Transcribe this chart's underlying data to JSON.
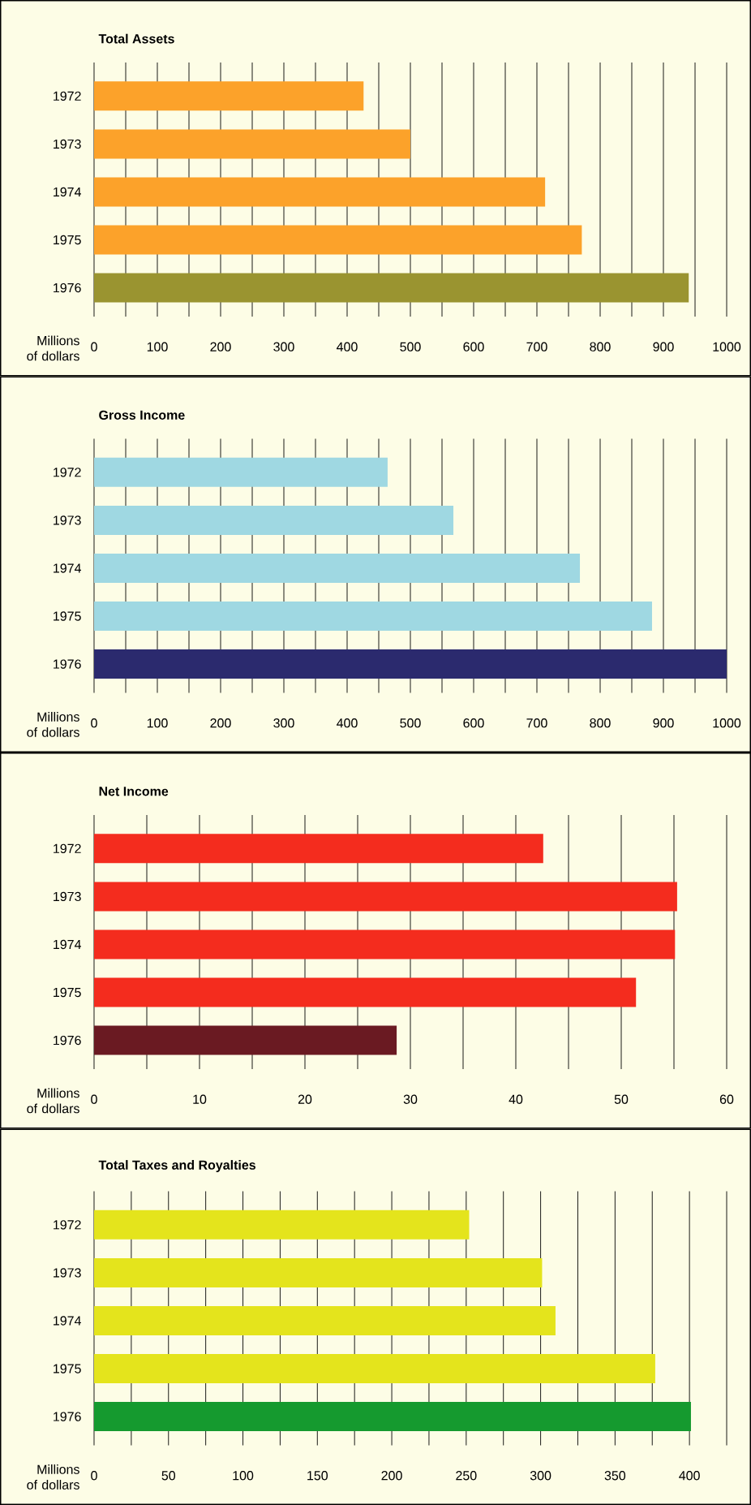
{
  "chart_data": [
    {
      "type": "bar",
      "orientation": "horizontal",
      "title": "Total Assets",
      "xlabel": "Millions of dollars",
      "categories": [
        "1972",
        "1973",
        "1974",
        "1975",
        "1976"
      ],
      "values": [
        426,
        500,
        713,
        771,
        940
      ],
      "colors": [
        "#fca22a",
        "#fca22a",
        "#fca22a",
        "#fca22a",
        "#9a9430"
      ],
      "xlim": [
        0,
        1000
      ],
      "xticks": [
        0,
        {
          "value": 50,
          "label": null
        },
        100,
        {
          "value": 150,
          "label": null
        },
        200,
        {
          "value": 250,
          "label": null
        },
        300,
        {
          "value": 350,
          "label": null
        },
        400,
        {
          "value": 450,
          "label": null
        },
        500,
        {
          "value": 550,
          "label": null
        },
        600,
        {
          "value": 650,
          "label": null
        },
        700,
        {
          "value": 750,
          "label": null
        },
        800,
        {
          "value": 850,
          "label": null
        },
        900,
        {
          "value": 950,
          "label": null
        },
        1000
      ],
      "grid": "x"
    },
    {
      "type": "bar",
      "orientation": "horizontal",
      "title": "Gross Income",
      "xlabel": "Millions of dollars",
      "categories": [
        "1972",
        "1973",
        "1974",
        "1975",
        "1976"
      ],
      "values": [
        464,
        568,
        768,
        882,
        1000
      ],
      "colors": [
        "#9fd8e2",
        "#9fd8e2",
        "#9fd8e2",
        "#9fd8e2",
        "#2b2a6e"
      ],
      "xlim": [
        0,
        1000
      ],
      "xticks": [
        0,
        {
          "value": 50,
          "label": null
        },
        100,
        {
          "value": 150,
          "label": null
        },
        200,
        {
          "value": 250,
          "label": null
        },
        300,
        {
          "value": 350,
          "label": null
        },
        400,
        {
          "value": 450,
          "label": null
        },
        500,
        {
          "value": 550,
          "label": null
        },
        600,
        {
          "value": 650,
          "label": null
        },
        700,
        {
          "value": 750,
          "label": null
        },
        800,
        {
          "value": 850,
          "label": null
        },
        900,
        {
          "value": 950,
          "label": null
        },
        1000
      ],
      "grid": "x"
    },
    {
      "type": "bar",
      "orientation": "horizontal",
      "title": "Net Income",
      "xlabel": "Millions of dollars",
      "categories": [
        "1972",
        "1973",
        "1974",
        "1975",
        "1976"
      ],
      "values": [
        42.6,
        55.3,
        55.1,
        51.4,
        28.7
      ],
      "colors": [
        "#f42c1e",
        "#f42c1e",
        "#f42c1e",
        "#f42c1e",
        "#6a1a22"
      ],
      "xlim": [
        0,
        60
      ],
      "xticks": [
        0,
        {
          "value": 5,
          "label": null
        },
        10,
        {
          "value": 15,
          "label": null
        },
        20,
        {
          "value": 25,
          "label": null
        },
        30,
        {
          "value": 35,
          "label": null
        },
        40,
        {
          "value": 45,
          "label": null
        },
        50,
        {
          "value": 55,
          "label": null
        },
        60
      ],
      "grid": "x"
    },
    {
      "type": "bar",
      "orientation": "horizontal",
      "title": "Total Taxes and Royalties",
      "xlabel": "Millions of dollars",
      "categories": [
        "1972",
        "1973",
        "1974",
        "1975",
        "1976"
      ],
      "values": [
        252,
        301,
        310,
        377,
        401
      ],
      "colors": [
        "#e4e41c",
        "#e4e41c",
        "#e4e41c",
        "#e4e41c",
        "#159a2f"
      ],
      "xlim": [
        0,
        425
      ],
      "xticks": [
        0,
        {
          "value": 25,
          "label": null
        },
        50,
        {
          "value": 75,
          "label": null
        },
        100,
        {
          "value": 125,
          "label": null
        },
        150,
        {
          "value": 175,
          "label": null
        },
        200,
        {
          "value": 225,
          "label": null
        },
        250,
        {
          "value": 275,
          "label": null
        },
        300,
        {
          "value": 325,
          "label": null
        },
        350,
        {
          "value": 375,
          "label": null
        },
        400,
        {
          "value": 425,
          "label": null
        }
      ],
      "grid": "x"
    }
  ]
}
